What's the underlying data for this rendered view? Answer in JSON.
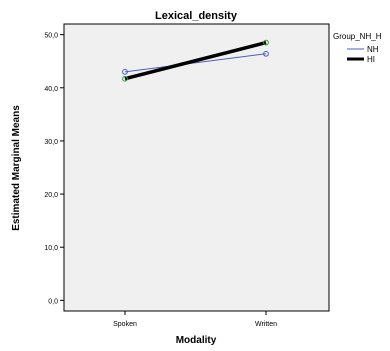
{
  "chart_data": {
    "type": "line",
    "title": "Lexical_density",
    "xlabel": "Modality",
    "ylabel": "Estimated Marginal Means",
    "categories": [
      "Spoken",
      "Written"
    ],
    "yticks": [
      "0,0",
      "10,0",
      "20,0",
      "30,0",
      "40,0",
      "50,0"
    ],
    "ylim": [
      -2,
      52
    ],
    "grid": false,
    "legend_title": "Group_NH_H",
    "legend_position": "right",
    "series": [
      {
        "name": "NH",
        "values": [
          43.0,
          46.4
        ],
        "color": "#4a5fbf",
        "marker_color": "#4a5fbf",
        "width": "thin"
      },
      {
        "name": "HI",
        "values": [
          41.7,
          48.5
        ],
        "color": "#000000",
        "marker_color": "#2e9e3c",
        "width": "thick"
      }
    ]
  }
}
